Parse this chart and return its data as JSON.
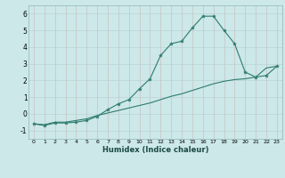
{
  "xlabel": "Humidex (Indice chaleur)",
  "xlim": [
    -0.5,
    23.5
  ],
  "ylim": [
    -1.5,
    6.5
  ],
  "xticks": [
    0,
    1,
    2,
    3,
    4,
    5,
    6,
    7,
    8,
    9,
    10,
    11,
    12,
    13,
    14,
    15,
    16,
    17,
    18,
    19,
    20,
    21,
    22,
    23
  ],
  "yticks": [
    -1,
    0,
    1,
    2,
    3,
    4,
    5,
    6
  ],
  "bg_color": "#cce8e8",
  "grid_color": "#b8d8d8",
  "line_color": "#2e7b6e",
  "line1_x": [
    0,
    1,
    2,
    3,
    4,
    5,
    6,
    7,
    8,
    9,
    10,
    11,
    12,
    13,
    14,
    15,
    16,
    17,
    18,
    19,
    20,
    21,
    22,
    23
  ],
  "line1_y": [
    -0.6,
    -0.7,
    -0.55,
    -0.55,
    -0.5,
    -0.4,
    -0.15,
    0.25,
    0.6,
    0.85,
    1.5,
    2.1,
    3.5,
    4.2,
    4.35,
    5.15,
    5.85,
    5.85,
    5.0,
    4.2,
    2.5,
    2.2,
    2.3,
    2.85
  ],
  "line2_x": [
    0,
    1,
    2,
    3,
    4,
    5,
    6,
    7,
    8,
    9,
    10,
    11,
    12,
    13,
    14,
    15,
    16,
    17,
    18,
    19,
    20,
    21,
    22,
    23
  ],
  "line2_y": [
    -0.6,
    -0.65,
    -0.5,
    -0.5,
    -0.4,
    -0.3,
    -0.1,
    0.05,
    0.2,
    0.35,
    0.5,
    0.65,
    0.85,
    1.05,
    1.2,
    1.4,
    1.6,
    1.8,
    1.95,
    2.05,
    2.1,
    2.2,
    2.75,
    2.85
  ]
}
